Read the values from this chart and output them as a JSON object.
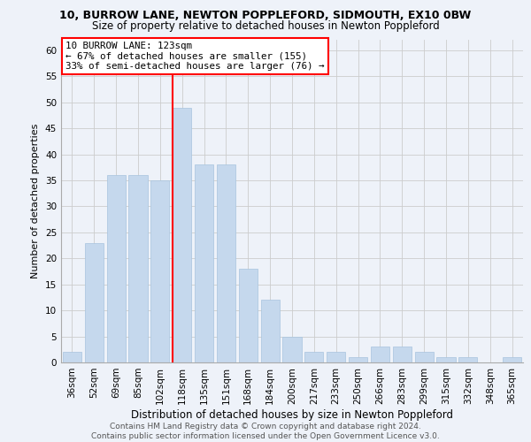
{
  "title1": "10, BURROW LANE, NEWTON POPPLEFORD, SIDMOUTH, EX10 0BW",
  "title2": "Size of property relative to detached houses in Newton Poppleford",
  "xlabel": "Distribution of detached houses by size in Newton Poppleford",
  "ylabel": "Number of detached properties",
  "footer1": "Contains HM Land Registry data © Crown copyright and database right 2024.",
  "footer2": "Contains public sector information licensed under the Open Government Licence v3.0.",
  "categories": [
    "36sqm",
    "52sqm",
    "69sqm",
    "85sqm",
    "102sqm",
    "118sqm",
    "135sqm",
    "151sqm",
    "168sqm",
    "184sqm",
    "200sqm",
    "217sqm",
    "233sqm",
    "250sqm",
    "266sqm",
    "283sqm",
    "299sqm",
    "315sqm",
    "332sqm",
    "348sqm",
    "365sqm"
  ],
  "values": [
    2,
    23,
    36,
    36,
    35,
    49,
    38,
    38,
    18,
    12,
    5,
    2,
    2,
    1,
    3,
    3,
    2,
    1,
    1,
    0,
    1
  ],
  "bar_color": "#c5d8ed",
  "bar_edge_color": "#a8c4de",
  "vline_index": 5,
  "vline_color": "red",
  "annotation_line1": "10 BURROW LANE: 123sqm",
  "annotation_line2": "← 67% of detached houses are smaller (155)",
  "annotation_line3": "33% of semi-detached houses are larger (76) →",
  "annotation_box_color": "white",
  "annotation_box_edge_color": "red",
  "ylim": [
    0,
    62
  ],
  "yticks": [
    0,
    5,
    10,
    15,
    20,
    25,
    30,
    35,
    40,
    45,
    50,
    55,
    60
  ],
  "grid_color": "#cccccc",
  "bg_color": "#eef2f9",
  "title1_fontsize": 9,
  "title2_fontsize": 8.5,
  "ylabel_fontsize": 8,
  "xlabel_fontsize": 8.5,
  "tick_fontsize": 7.5,
  "footer_fontsize": 6.5
}
